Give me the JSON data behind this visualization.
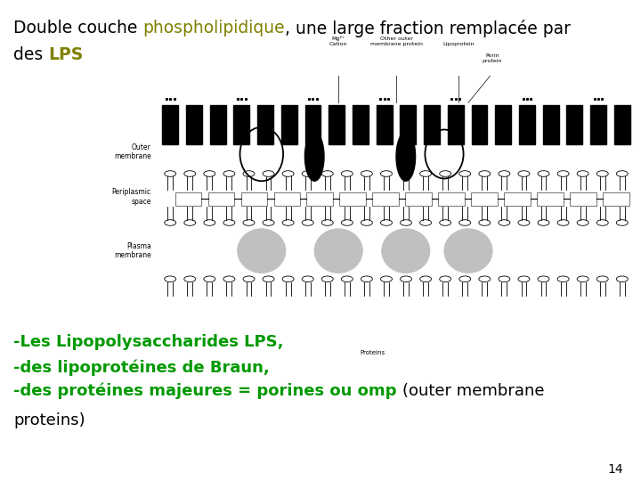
{
  "bg_color": "#ffffff",
  "title_line1_parts": [
    {
      "text": "Double couche ",
      "color": "#000000",
      "bold": false
    },
    {
      "text": "phospholipidique",
      "color": "#808000",
      "bold": false
    },
    {
      "text": ", une large fraction remplacée par",
      "color": "#000000",
      "bold": false
    }
  ],
  "title_line2_parts": [
    {
      "text": "des ",
      "color": "#000000",
      "bold": false
    },
    {
      "text": "LPS",
      "color": "#808000",
      "bold": true
    }
  ],
  "bullet1": "-Les Lipopolysaccharides LPS,",
  "bullet2": "-des lipoprotéines de Braun,",
  "bullet3_green": "-des protéines majeures = porines ou omp ",
  "bullet3_black": "(outer membrane",
  "bullet4": "proteins)",
  "page_number": "14",
  "title_fontsize": 13.5,
  "bullet_fontsize": 13,
  "page_fontsize": 10,
  "green_color": "#009900",
  "olive_color": "#808000",
  "black_color": "#000000"
}
